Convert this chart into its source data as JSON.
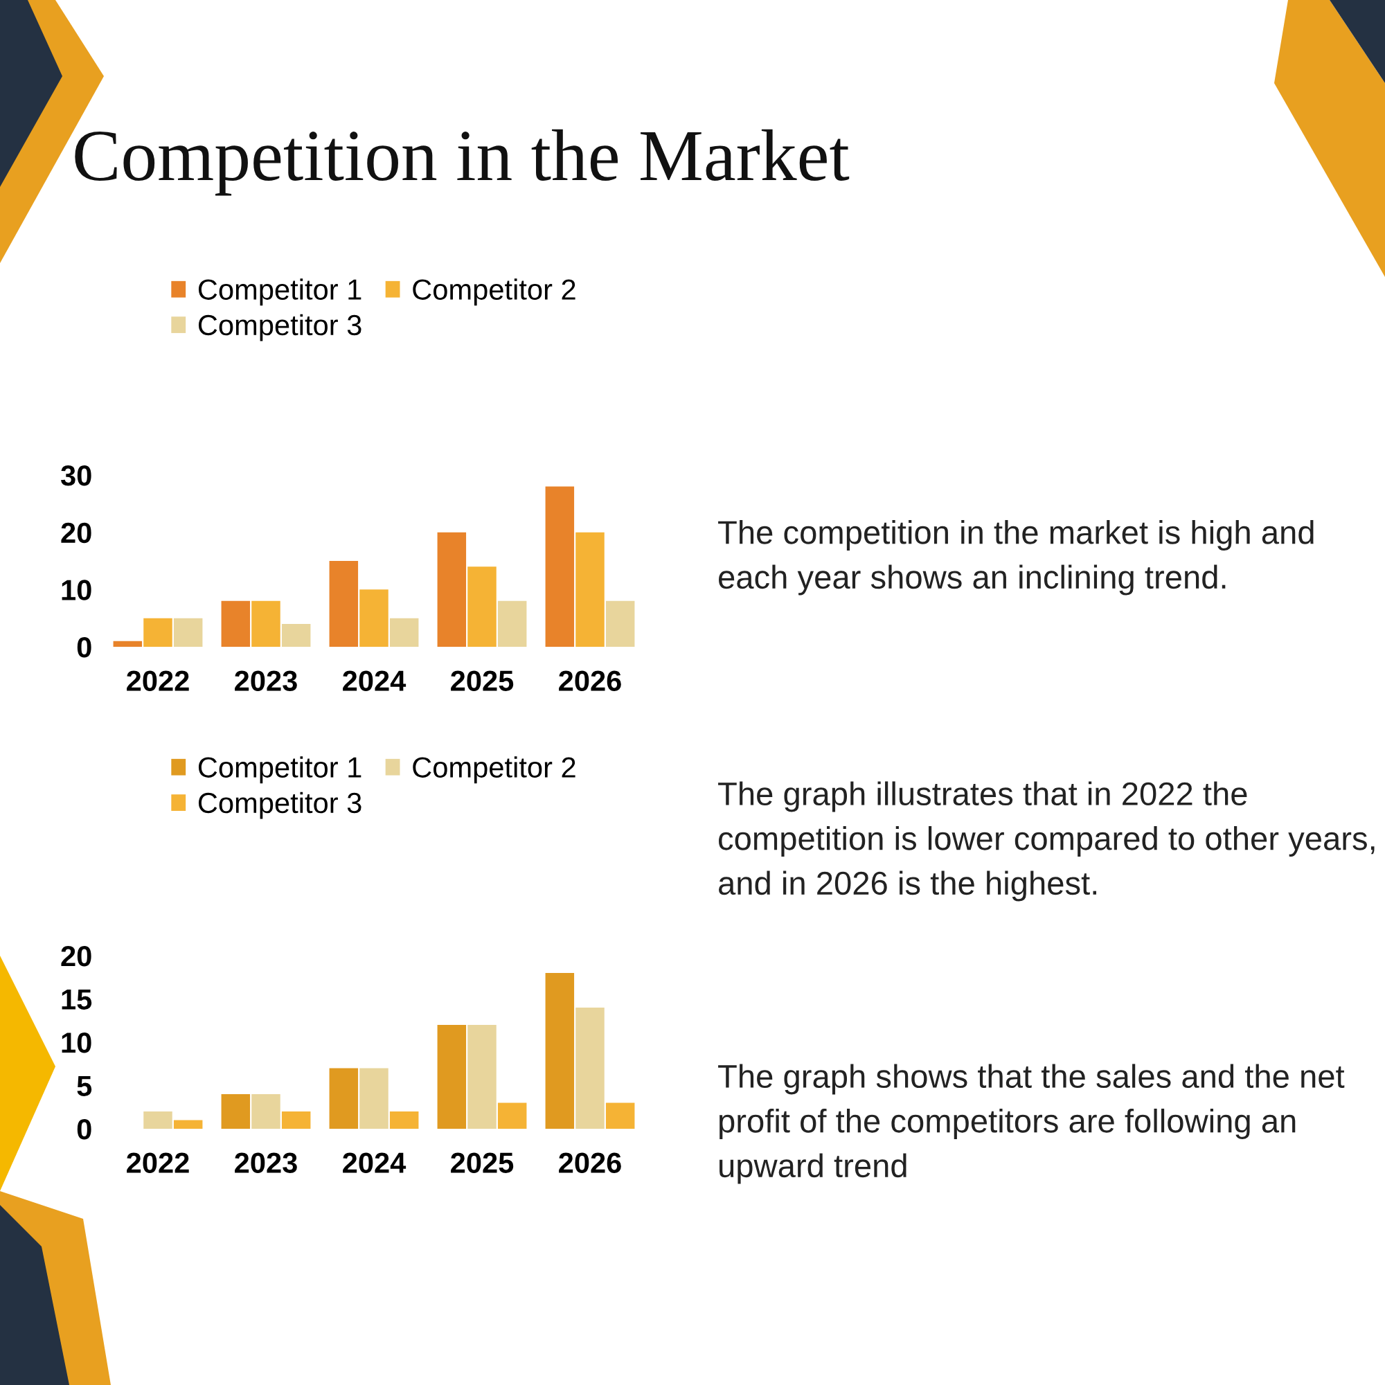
{
  "chart_data": [
    {
      "type": "bar",
      "title": "Competition in the Market",
      "categories": [
        "2022",
        "2023",
        "2024",
        "2025",
        "2026"
      ],
      "series": [
        {
          "name": "Competitor 1",
          "color": "#e8832a",
          "values": [
            1,
            8,
            15,
            20,
            28
          ]
        },
        {
          "name": "Competitor 2",
          "color": "#f5b335",
          "values": [
            5,
            8,
            10,
            14,
            20
          ]
        },
        {
          "name": "Competitor 3",
          "color": "#e8d59c",
          "values": [
            5,
            4,
            5,
            8,
            8
          ]
        }
      ],
      "ylim": [
        0,
        30
      ],
      "yticks": [
        0,
        10,
        20,
        30
      ],
      "grid": false,
      "legend": "top"
    },
    {
      "type": "bar",
      "categories": [
        "2022",
        "2023",
        "2024",
        "2025",
        "2026"
      ],
      "series": [
        {
          "name": "Competitor 1",
          "color": "#e09a20",
          "values": [
            0,
            4,
            7,
            12,
            18
          ]
        },
        {
          "name": "Competitor 2",
          "color": "#e8d59c",
          "values": [
            2,
            4,
            7,
            12,
            14
          ]
        },
        {
          "name": "Competitor 3",
          "color": "#f5b335",
          "values": [
            1,
            2,
            2,
            3,
            3
          ]
        }
      ],
      "ylim": [
        0,
        20
      ],
      "yticks": [
        0,
        5,
        10,
        15,
        20
      ],
      "grid": false,
      "legend": "top"
    },
    {
      "type": "other",
      "annotations": [
        "The competition in the market is high and each year shows an inclining trend.",
        "The graph illustrates that in 2022 the competition is lower compared to other years, and in 2026 is the highest.",
        "The graph shows that the sales and the net profit of the competitors are following an upward trend"
      ]
    }
  ]
}
